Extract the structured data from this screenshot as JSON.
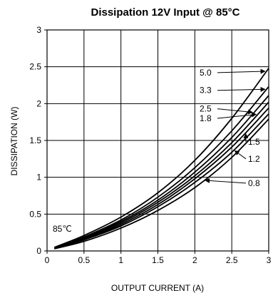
{
  "chart_data": {
    "type": "line",
    "title": "Dissipation 12V Input @ 85°C",
    "xlabel": "OUTPUT CURRENT (A)",
    "ylabel": "DISSIPATION (W)",
    "xlim": [
      0,
      3
    ],
    "ylim": [
      0,
      3
    ],
    "x_ticks": [
      "0",
      "0.5",
      "1",
      "1.5",
      "2",
      "2.5",
      "3"
    ],
    "y_ticks": [
      "0",
      "0.5",
      "1",
      "1.5",
      "2",
      "2.5",
      "3"
    ],
    "grid": true,
    "annotation": "85℃",
    "x": [
      0.1,
      0.5,
      1.0,
      1.5,
      2.0,
      2.5,
      3.0
    ],
    "series": [
      {
        "name": "5.0",
        "values": [
          0.05,
          0.21,
          0.46,
          0.79,
          1.23,
          1.8,
          2.48
        ]
      },
      {
        "name": "3.3",
        "values": [
          0.04,
          0.19,
          0.42,
          0.73,
          1.13,
          1.63,
          2.23
        ]
      },
      {
        "name": "2.5",
        "values": [
          0.04,
          0.18,
          0.4,
          0.69,
          1.07,
          1.54,
          2.11
        ]
      },
      {
        "name": "1.8",
        "values": [
          0.04,
          0.17,
          0.38,
          0.66,
          1.02,
          1.47,
          2.02
        ]
      },
      {
        "name": "1.5",
        "values": [
          0.03,
          0.16,
          0.36,
          0.63,
          0.98,
          1.41,
          1.94
        ]
      },
      {
        "name": "1.2",
        "values": [
          0.03,
          0.15,
          0.34,
          0.6,
          0.93,
          1.34,
          1.86
        ]
      },
      {
        "name": "0.8",
        "values": [
          0.03,
          0.13,
          0.31,
          0.55,
          0.86,
          1.27,
          1.79
        ]
      }
    ],
    "callout_y": [
      2.42,
      2.18,
      1.93,
      1.8,
      1.48,
      1.25,
      0.92
    ],
    "callout_target_x": [
      2.97,
      2.97,
      2.8,
      2.85,
      2.67,
      2.52,
      2.12
    ]
  }
}
